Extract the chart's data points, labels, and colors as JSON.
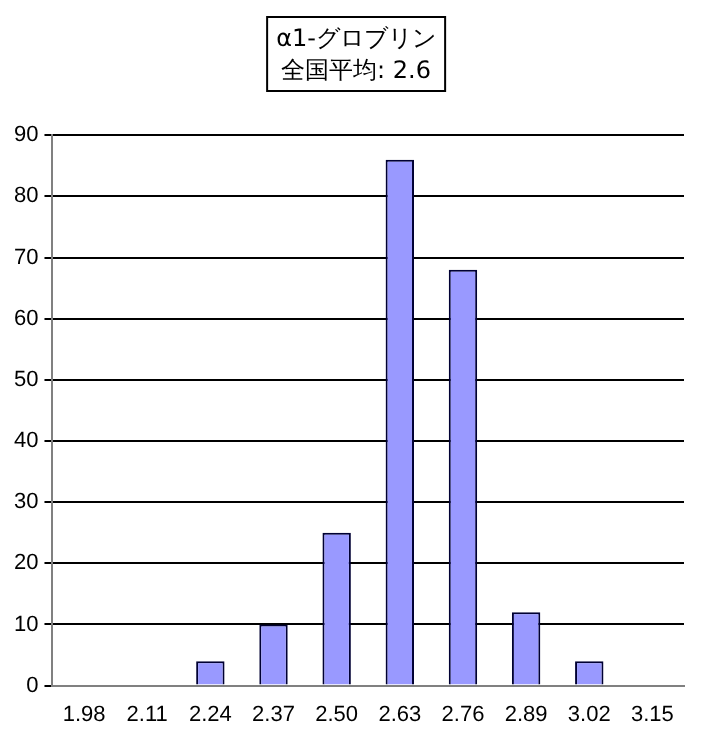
{
  "chart_data": {
    "type": "bar",
    "title": "α1-グロブリン",
    "subtitle": "全国平均: 2.6",
    "categories": [
      "1.98",
      "2.11",
      "2.24",
      "2.37",
      "2.50",
      "2.63",
      "2.76",
      "2.89",
      "3.02",
      "3.15"
    ],
    "values": [
      0,
      0,
      4,
      10,
      25,
      86,
      68,
      12,
      4,
      0
    ],
    "color": "#9999ff",
    "ylim": [
      0,
      90
    ],
    "yticks": [
      0,
      10,
      20,
      30,
      40,
      50,
      60,
      70,
      80,
      90
    ],
    "grid": "y",
    "legend": false
  }
}
